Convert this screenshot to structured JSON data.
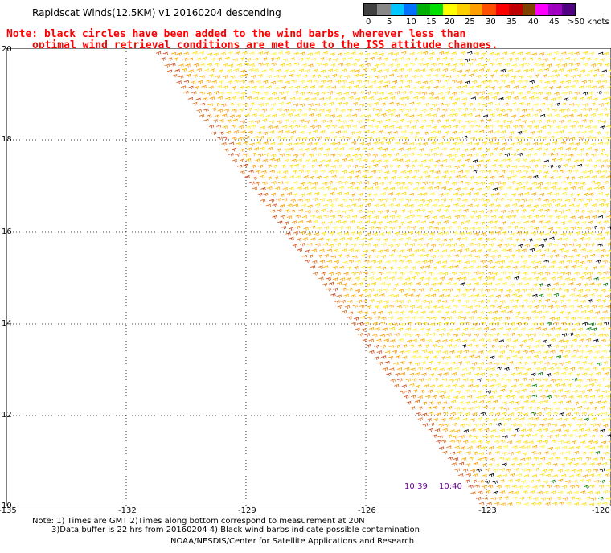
{
  "title": "Rapidscat Winds(12.5KM) v1 20160204 descending",
  "note": {
    "line1": "Note: black circles have been added to the wind barbs, wherever less than",
    "line2": "optimal wind retrieval conditions are met due to the ISS attitude changes."
  },
  "legend": {
    "colors": [
      "#404040",
      "#888888",
      "#00c8ff",
      "#0070ff",
      "#00b000",
      "#00e000",
      "#ffff00",
      "#ffd000",
      "#ffa000",
      "#ff5000",
      "#ff0000",
      "#c00000",
      "#804000",
      "#ff00ff",
      "#a000c0",
      "#500080"
    ],
    "labels": [
      "0",
      "5",
      "10",
      "15",
      "20",
      "25",
      "30",
      "35",
      "40",
      "45",
      ">50 knots"
    ]
  },
  "map": {
    "lat_labels": [
      "20",
      "18",
      "16",
      "14",
      "12",
      "10"
    ],
    "lon_labels": [
      "-135",
      "-132",
      "-129",
      "-126",
      "-123",
      "-120"
    ],
    "times": [
      "10:39",
      "10:40"
    ]
  },
  "footer": {
    "line1": "Note: 1) Times are GMT 2)Times along bottom correspond to measurement at 20N",
    "line2": "3)Data buffer is 22 hrs from 20160204 4) Black wind barbs indicate possible contamination",
    "line3": "NOAA/NESDIS/Center for Satellite Applications and Research"
  }
}
